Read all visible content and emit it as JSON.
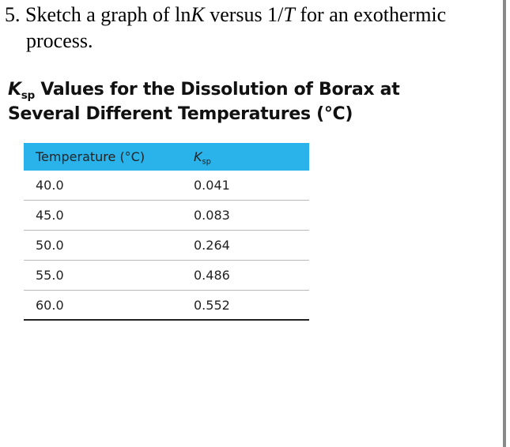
{
  "question": {
    "number": "5.",
    "text_before": " Sketch a graph of ln",
    "italic_k": "K",
    "text_middle": " versus 1/",
    "italic_t": "T",
    "text_after": " for an exothermic",
    "line2": "process."
  },
  "caption": {
    "k": "K",
    "sub": "sp",
    "line1_rest": " Values for the Dissolution of Borax at",
    "line2": "Several Different Temperatures (°C)"
  },
  "table": {
    "header_temp": "Temperature (°C)",
    "header_k": "K",
    "header_k_sub": "sp",
    "rows": [
      {
        "temp": "40.0",
        "ksp": "0.041"
      },
      {
        "temp": "45.0",
        "ksp": "0.083"
      },
      {
        "temp": "50.0",
        "ksp": "0.264"
      },
      {
        "temp": "55.0",
        "ksp": "0.486"
      },
      {
        "temp": "60.0",
        "ksp": "0.552"
      }
    ]
  }
}
